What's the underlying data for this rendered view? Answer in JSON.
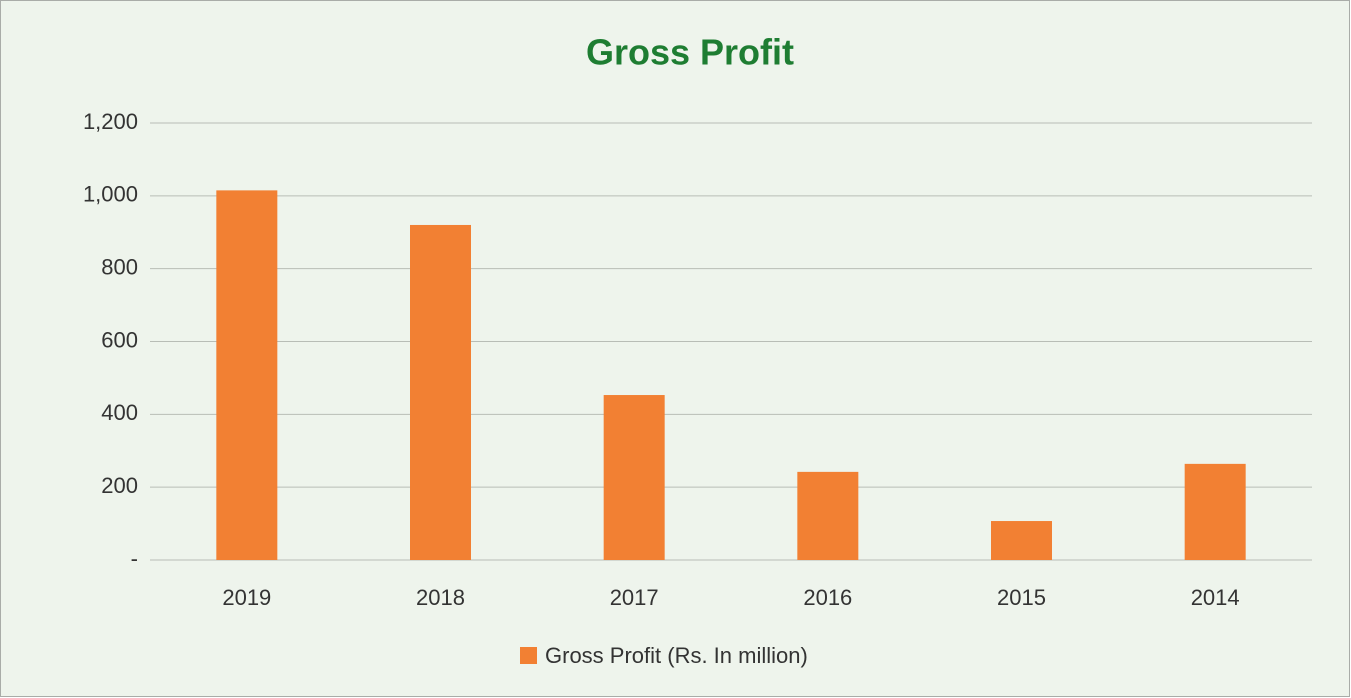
{
  "chart_data": {
    "type": "bar",
    "title": "Gross Profit",
    "categories": [
      "2019",
      "2018",
      "2017",
      "2016",
      "2015",
      "2014"
    ],
    "series": [
      {
        "name": "Gross Profit (Rs. In million)",
        "color": "#f28033",
        "values": [
          1015,
          920,
          453,
          242,
          107,
          264
        ]
      }
    ],
    "ylim": [
      0,
      1200
    ],
    "yticks": [
      {
        "value": 0,
        "label": "-"
      },
      200,
      400,
      600,
      800,
      {
        "value": 1000,
        "label": "1,000"
      },
      {
        "value": 1200,
        "label": "1,200"
      }
    ],
    "grid": true,
    "legend": "bottom"
  }
}
